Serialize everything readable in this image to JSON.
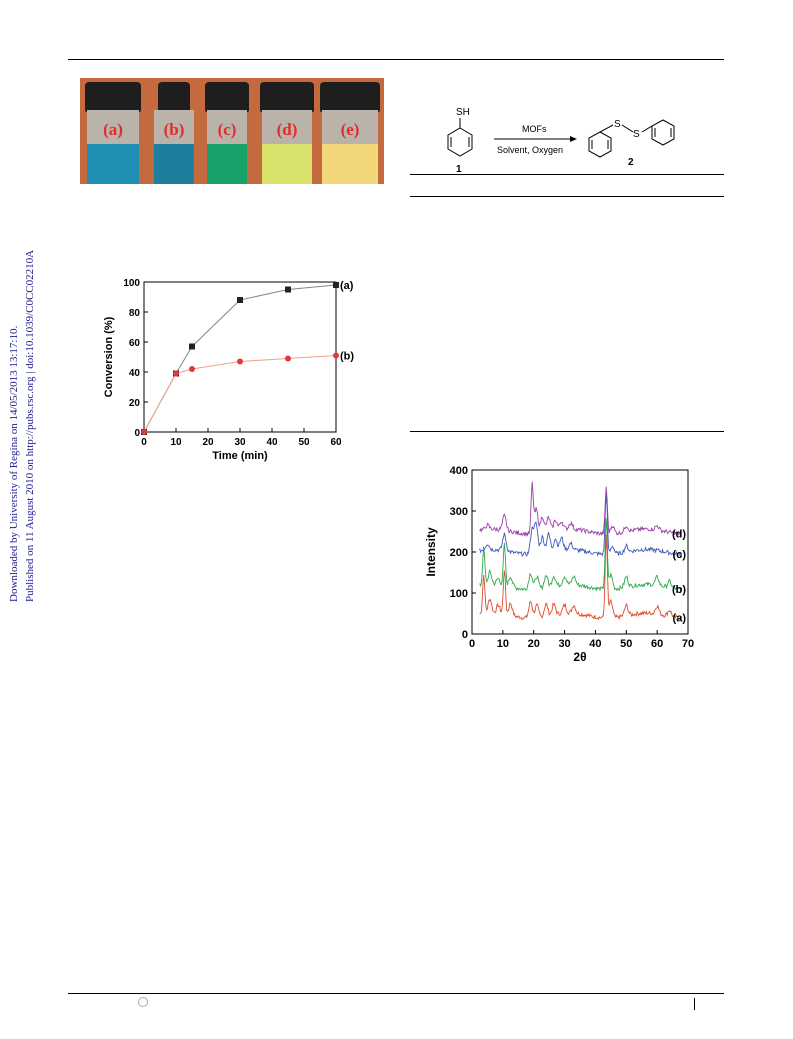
{
  "side_note": {
    "line1": "Downloaded by University of Regina on 14/05/2013 13:17:10.",
    "line2": "Published on 11 August 2010 on http://pubs.rsc.org | doi:10.1039/C0CC02210A"
  },
  "vials": [
    {
      "label": "(a)",
      "color": "#1f8fb3"
    },
    {
      "label": "(b)",
      "color": "#1d7f9c"
    },
    {
      "label": "(c)",
      "color": "#19a26a"
    },
    {
      "label": "(d)",
      "color": "#d9e36b"
    },
    {
      "label": "(e)",
      "color": "#f2d77a"
    }
  ],
  "scheme": {
    "sh_label": "SH",
    "reagent": "MOFs",
    "conditions": "Solvent, Oxygen",
    "s1": "S",
    "s2": "S",
    "compound1": "1",
    "compound2": "2"
  },
  "chart_data": [
    {
      "type": "line",
      "xlabel": "Time (min)",
      "ylabel": "Conversion (%)",
      "xlim": [
        0,
        60
      ],
      "ylim": [
        0,
        100
      ],
      "x_ticks": [
        0,
        10,
        20,
        30,
        40,
        50,
        60
      ],
      "y_ticks": [
        0,
        20,
        40,
        60,
        80,
        100
      ],
      "series": [
        {
          "name": "(a)",
          "color": "#222222",
          "line_color": "#888888",
          "marker": "square",
          "points": [
            [
              0,
              0
            ],
            [
              10,
              39
            ],
            [
              15,
              57
            ],
            [
              30,
              88
            ],
            [
              45,
              95
            ],
            [
              60,
              98
            ]
          ]
        },
        {
          "name": "(b)",
          "color": "#e23a3a",
          "line_color": "#f2a08a",
          "marker": "circle",
          "points": [
            [
              0,
              0
            ],
            [
              10,
              39
            ],
            [
              15,
              42
            ],
            [
              30,
              47
            ],
            [
              45,
              49
            ],
            [
              60,
              51
            ]
          ]
        }
      ]
    },
    {
      "type": "line",
      "xlabel": "2θ",
      "ylabel": "Intensity",
      "xlim": [
        0,
        70
      ],
      "ylim": [
        0,
        400
      ],
      "x_ticks": [
        0,
        10,
        20,
        30,
        40,
        50,
        60,
        70
      ],
      "y_ticks": [
        0,
        100,
        200,
        300,
        400
      ],
      "series": [
        {
          "name": "(a)",
          "color": "#e04a2a",
          "baseline": 45,
          "peaks": [
            [
              3.8,
              95
            ],
            [
              5.8,
              35
            ],
            [
              8.5,
              20
            ],
            [
              10.5,
              110
            ],
            [
              12.5,
              30
            ],
            [
              19,
              40
            ],
            [
              21,
              30
            ],
            [
              24,
              30
            ],
            [
              26.5,
              25
            ],
            [
              30,
              20
            ],
            [
              33,
              20
            ],
            [
              43.5,
              200
            ],
            [
              45,
              40
            ],
            [
              50,
              25
            ],
            [
              60,
              20
            ],
            [
              64,
              15
            ]
          ]
        },
        {
          "name": "(b)",
          "color": "#2ea84a",
          "baseline": 115,
          "peaks": [
            [
              3.8,
              90
            ],
            [
              5.8,
              30
            ],
            [
              8.5,
              15
            ],
            [
              10.5,
              100
            ],
            [
              12.5,
              25
            ],
            [
              19,
              40
            ],
            [
              21,
              30
            ],
            [
              24,
              30
            ],
            [
              26.5,
              25
            ],
            [
              30,
              20
            ],
            [
              33,
              20
            ],
            [
              43.5,
              170
            ],
            [
              45,
              35
            ],
            [
              50,
              25
            ],
            [
              60,
              20
            ],
            [
              64,
              15
            ]
          ]
        },
        {
          "name": "(c)",
          "color": "#3c5bb8",
          "baseline": 200,
          "peaks": [
            [
              5,
              15
            ],
            [
              10.5,
              40
            ],
            [
              19.5,
              60
            ],
            [
              20.8,
              70
            ],
            [
              22.8,
              40
            ],
            [
              24.8,
              45
            ],
            [
              27,
              30
            ],
            [
              29,
              30
            ],
            [
              32,
              15
            ],
            [
              43.5,
              150
            ],
            [
              45.5,
              20
            ],
            [
              50,
              15
            ]
          ]
        },
        {
          "name": "(d)",
          "color": "#9a3fa8",
          "baseline": 250,
          "peaks": [
            [
              5,
              10
            ],
            [
              10.5,
              35
            ],
            [
              19.5,
              120
            ],
            [
              20.8,
              60
            ],
            [
              22.8,
              40
            ],
            [
              24.8,
              35
            ],
            [
              27,
              25
            ],
            [
              29,
              20
            ],
            [
              32,
              15
            ],
            [
              43.5,
              115
            ],
            [
              45.5,
              20
            ],
            [
              50,
              15
            ],
            [
              60,
              10
            ]
          ]
        }
      ]
    }
  ]
}
